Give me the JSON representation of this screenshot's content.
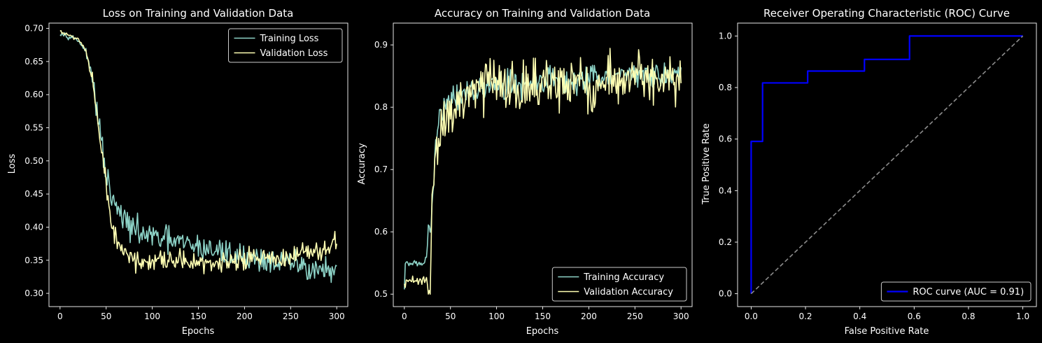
{
  "figure": {
    "background": "#000000",
    "foreground": "#ffffff"
  },
  "chart_data": [
    {
      "type": "line",
      "title": "Loss on Training and Validation Data",
      "xlabel": "Epochs",
      "ylabel": "Loss",
      "xlim": [
        -12,
        312
      ],
      "ylim": [
        0.28,
        0.708
      ],
      "xticks": [
        0,
        50,
        100,
        150,
        200,
        250,
        300
      ],
      "yticks": [
        0.3,
        0.35,
        0.4,
        0.45,
        0.5,
        0.55,
        0.6,
        0.65,
        0.7
      ],
      "ytick_labels": [
        "0.30",
        "0.35",
        "0.40",
        "0.45",
        "0.50",
        "0.55",
        "0.60",
        "0.65",
        "0.70"
      ],
      "legend_position": "upper right",
      "grid": false,
      "series": [
        {
          "name": "Training Loss",
          "color": "#8dd3c7",
          "noise": 0.02,
          "clip": [
            0.29,
            0.7
          ],
          "anchors": [
            [
              0,
              0.694
            ],
            [
              10,
              0.688
            ],
            [
              20,
              0.682
            ],
            [
              28,
              0.665
            ],
            [
              35,
              0.625
            ],
            [
              40,
              0.575
            ],
            [
              45,
              0.525
            ],
            [
              50,
              0.48
            ],
            [
              55,
              0.445
            ],
            [
              60,
              0.43
            ],
            [
              70,
              0.41
            ],
            [
              80,
              0.395
            ],
            [
              100,
              0.385
            ],
            [
              150,
              0.37
            ],
            [
              200,
              0.355
            ],
            [
              250,
              0.345
            ],
            [
              300,
              0.33
            ]
          ]
        },
        {
          "name": "Validation Loss",
          "color": "#ffffb3",
          "noise": 0.017,
          "clip": [
            0.32,
            0.7
          ],
          "anchors": [
            [
              0,
              0.695
            ],
            [
              10,
              0.69
            ],
            [
              20,
              0.684
            ],
            [
              28,
              0.665
            ],
            [
              35,
              0.62
            ],
            [
              40,
              0.565
            ],
            [
              45,
              0.51
            ],
            [
              50,
              0.46
            ],
            [
              55,
              0.41
            ],
            [
              60,
              0.38
            ],
            [
              70,
              0.36
            ],
            [
              80,
              0.35
            ],
            [
              100,
              0.345
            ],
            [
              150,
              0.345
            ],
            [
              200,
              0.35
            ],
            [
              250,
              0.355
            ],
            [
              280,
              0.36
            ],
            [
              300,
              0.375
            ]
          ]
        }
      ]
    },
    {
      "type": "line",
      "title": "Accuracy on Training and Validation Data",
      "xlabel": "Epochs",
      "ylabel": "Accuracy",
      "xlim": [
        -12,
        312
      ],
      "ylim": [
        0.48,
        0.935
      ],
      "xticks": [
        0,
        50,
        100,
        150,
        200,
        250,
        300
      ],
      "yticks": [
        0.5,
        0.6,
        0.7,
        0.8,
        0.9
      ],
      "ytick_labels": [
        "0.5",
        "0.6",
        "0.7",
        "0.8",
        "0.9"
      ],
      "legend_position": "lower right",
      "grid": false,
      "series": [
        {
          "name": "Training Accuracy",
          "color": "#8dd3c7",
          "noise": 0.022,
          "clip": [
            0.5,
            0.9
          ],
          "anchors": [
            [
              0,
              0.507
            ],
            [
              1,
              0.549
            ],
            [
              20,
              0.549
            ],
            [
              24,
              0.56
            ],
            [
              26,
              0.595
            ],
            [
              29,
              0.6
            ],
            [
              32,
              0.7
            ],
            [
              36,
              0.78
            ],
            [
              40,
              0.79
            ],
            [
              50,
              0.81
            ],
            [
              70,
              0.83
            ],
            [
              100,
              0.835
            ],
            [
              150,
              0.84
            ],
            [
              200,
              0.845
            ],
            [
              250,
              0.85
            ],
            [
              300,
              0.855
            ]
          ]
        },
        {
          "name": "Validation Accuracy",
          "color": "#ffffb3",
          "noise": 0.04,
          "clip": [
            0.5,
            0.912
          ],
          "anchors": [
            [
              0,
              0.522
            ],
            [
              25,
              0.522
            ],
            [
              26,
              0.5
            ],
            [
              28,
              0.5
            ],
            [
              30,
              0.65
            ],
            [
              33,
              0.72
            ],
            [
              38,
              0.75
            ],
            [
              45,
              0.78
            ],
            [
              55,
              0.8
            ],
            [
              70,
              0.83
            ],
            [
              100,
              0.835
            ],
            [
              150,
              0.835
            ],
            [
              200,
              0.84
            ],
            [
              250,
              0.845
            ],
            [
              300,
              0.845
            ]
          ]
        }
      ]
    },
    {
      "type": "line",
      "title": "Receiver Operating Characteristic (ROC) Curve",
      "xlabel": "False Positive Rate",
      "ylabel": "True Positive Rate",
      "xlim": [
        -0.05,
        1.05
      ],
      "ylim": [
        -0.05,
        1.05
      ],
      "xticks": [
        0.0,
        0.2,
        0.4,
        0.6,
        0.8,
        1.0
      ],
      "yticks": [
        0.0,
        0.2,
        0.4,
        0.6,
        0.8,
        1.0
      ],
      "xtick_labels": [
        "0.0",
        "0.2",
        "0.4",
        "0.6",
        "0.8",
        "1.0"
      ],
      "ytick_labels": [
        "0.0",
        "0.2",
        "0.4",
        "0.6",
        "0.8",
        "1.0"
      ],
      "legend_position": "lower right",
      "grid": false,
      "series": [
        {
          "name": "ROC curve (AUC = 0.91)",
          "color": "#0000ff",
          "width": 2.2,
          "x": [
            0.0,
            0.0,
            0.0,
            0.042,
            0.042,
            0.208,
            0.208,
            0.417,
            0.417,
            0.583,
            0.583,
            1.0
          ],
          "y": [
            0.0,
            0.045,
            0.591,
            0.591,
            0.818,
            0.818,
            0.864,
            0.864,
            0.909,
            0.909,
            1.0,
            1.0
          ]
        },
        {
          "name": "",
          "color": "#8c8c8c",
          "dashed": true,
          "legend": false,
          "x": [
            0.0,
            1.0
          ],
          "y": [
            0.0,
            1.0
          ]
        }
      ]
    }
  ]
}
